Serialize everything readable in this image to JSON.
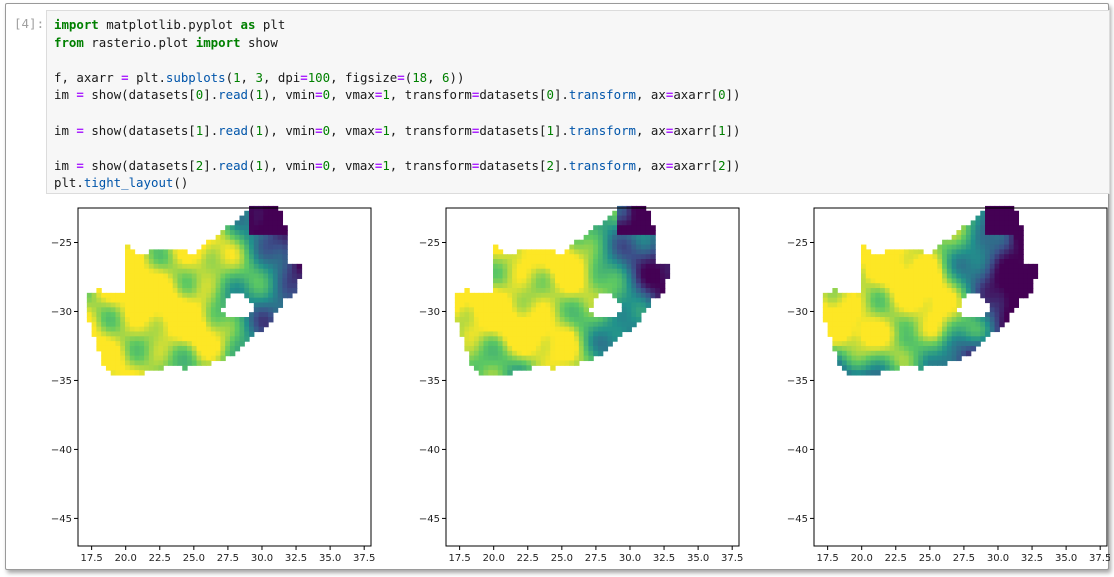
{
  "cell": {
    "prompt": "[4]:",
    "code_lines": [
      [
        {
          "t": "import",
          "c": "kw"
        },
        {
          "t": " matplotlib.pyplot "
        },
        {
          "t": "as",
          "c": "kw"
        },
        {
          "t": " plt"
        }
      ],
      [
        {
          "t": "from",
          "c": "kw"
        },
        {
          "t": " rasterio.plot "
        },
        {
          "t": "import",
          "c": "kw"
        },
        {
          "t": " show"
        }
      ],
      [],
      [
        {
          "t": "f, axarr "
        },
        {
          "t": "=",
          "c": "op"
        },
        {
          "t": " plt."
        },
        {
          "t": "subplots",
          "c": "attr"
        },
        {
          "t": "("
        },
        {
          "t": "1",
          "c": "num"
        },
        {
          "t": ", "
        },
        {
          "t": "3",
          "c": "num"
        },
        {
          "t": ", dpi"
        },
        {
          "t": "=",
          "c": "op"
        },
        {
          "t": "100",
          "c": "num"
        },
        {
          "t": ", figsize"
        },
        {
          "t": "=",
          "c": "op"
        },
        {
          "t": "("
        },
        {
          "t": "18",
          "c": "num"
        },
        {
          "t": ", "
        },
        {
          "t": "6",
          "c": "num"
        },
        {
          "t": "))"
        }
      ],
      [
        {
          "t": "im "
        },
        {
          "t": "=",
          "c": "op"
        },
        {
          "t": " show(datasets["
        },
        {
          "t": "0",
          "c": "num"
        },
        {
          "t": "]."
        },
        {
          "t": "read",
          "c": "attr"
        },
        {
          "t": "("
        },
        {
          "t": "1",
          "c": "num"
        },
        {
          "t": "), vmin"
        },
        {
          "t": "=",
          "c": "op"
        },
        {
          "t": "0",
          "c": "num"
        },
        {
          "t": ", vmax"
        },
        {
          "t": "=",
          "c": "op"
        },
        {
          "t": "1",
          "c": "num"
        },
        {
          "t": ", transform"
        },
        {
          "t": "=",
          "c": "op"
        },
        {
          "t": "datasets["
        },
        {
          "t": "0",
          "c": "num"
        },
        {
          "t": "]."
        },
        {
          "t": "transform",
          "c": "attr"
        },
        {
          "t": ", ax"
        },
        {
          "t": "=",
          "c": "op"
        },
        {
          "t": "axarr["
        },
        {
          "t": "0",
          "c": "num"
        },
        {
          "t": "])"
        }
      ],
      [],
      [
        {
          "t": "im "
        },
        {
          "t": "=",
          "c": "op"
        },
        {
          "t": " show(datasets["
        },
        {
          "t": "1",
          "c": "num"
        },
        {
          "t": "]."
        },
        {
          "t": "read",
          "c": "attr"
        },
        {
          "t": "("
        },
        {
          "t": "1",
          "c": "num"
        },
        {
          "t": "), vmin"
        },
        {
          "t": "=",
          "c": "op"
        },
        {
          "t": "0",
          "c": "num"
        },
        {
          "t": ", vmax"
        },
        {
          "t": "=",
          "c": "op"
        },
        {
          "t": "1",
          "c": "num"
        },
        {
          "t": ", transform"
        },
        {
          "t": "=",
          "c": "op"
        },
        {
          "t": "datasets["
        },
        {
          "t": "1",
          "c": "num"
        },
        {
          "t": "]."
        },
        {
          "t": "transform",
          "c": "attr"
        },
        {
          "t": ", ax"
        },
        {
          "t": "=",
          "c": "op"
        },
        {
          "t": "axarr["
        },
        {
          "t": "1",
          "c": "num"
        },
        {
          "t": "])"
        }
      ],
      [],
      [
        {
          "t": "im "
        },
        {
          "t": "=",
          "c": "op"
        },
        {
          "t": " show(datasets["
        },
        {
          "t": "2",
          "c": "num"
        },
        {
          "t": "]."
        },
        {
          "t": "read",
          "c": "attr"
        },
        {
          "t": "("
        },
        {
          "t": "1",
          "c": "num"
        },
        {
          "t": "), vmin"
        },
        {
          "t": "=",
          "c": "op"
        },
        {
          "t": "0",
          "c": "num"
        },
        {
          "t": ", vmax"
        },
        {
          "t": "=",
          "c": "op"
        },
        {
          "t": "1",
          "c": "num"
        },
        {
          "t": ", transform"
        },
        {
          "t": "=",
          "c": "op"
        },
        {
          "t": "datasets["
        },
        {
          "t": "2",
          "c": "num"
        },
        {
          "t": "]."
        },
        {
          "t": "transform",
          "c": "attr"
        },
        {
          "t": ", ax"
        },
        {
          "t": "=",
          "c": "op"
        },
        {
          "t": "axarr["
        },
        {
          "t": "2",
          "c": "num"
        },
        {
          "t": "])"
        }
      ],
      [
        {
          "t": "plt."
        },
        {
          "t": "tight_layout",
          "c": "attr"
        },
        {
          "t": "()"
        }
      ]
    ]
  },
  "colors": {
    "syntax_keyword": "#008000",
    "syntax_operator": "#aa22ff",
    "syntax_number": "#008000",
    "syntax_attribute": "#0055aa",
    "viridis_low": "#440154",
    "viridis_mid": "#21918c",
    "viridis_high": "#fde725"
  },
  "chart_data": [
    {
      "type": "heatmap",
      "xlim": [
        16.5,
        38.0
      ],
      "ylim": [
        -47.0,
        -22.5
      ],
      "xticks": [
        "17.5",
        "20.0",
        "22.5",
        "25.0",
        "27.5",
        "30.0",
        "32.5",
        "35.0",
        "37.5"
      ],
      "yticks": [
        "-25",
        "-30",
        "-35",
        "-40",
        "-45"
      ],
      "vmin": 0,
      "vmax": 1,
      "colormap": "viridis",
      "dry_fraction": 0.15
    },
    {
      "type": "heatmap",
      "xlim": [
        16.5,
        38.0
      ],
      "ylim": [
        -47.0,
        -22.5
      ],
      "xticks": [
        "17.5",
        "20.0",
        "22.5",
        "25.0",
        "27.5",
        "30.0",
        "32.5",
        "35.0",
        "37.5"
      ],
      "yticks": [
        "-25",
        "-30",
        "-35",
        "-40",
        "-45"
      ],
      "vmin": 0,
      "vmax": 1,
      "colormap": "viridis",
      "dry_fraction": 0.2
    },
    {
      "type": "heatmap",
      "xlim": [
        16.5,
        38.0
      ],
      "ylim": [
        -47.0,
        -22.5
      ],
      "xticks": [
        "17.5",
        "20.0",
        "22.5",
        "25.0",
        "27.5",
        "30.0",
        "32.5",
        "35.0",
        "37.5"
      ],
      "yticks": [
        "-25",
        "-30",
        "-35",
        "-40",
        "-45"
      ],
      "vmin": 0,
      "vmax": 1,
      "colormap": "viridis",
      "dry_fraction": 0.55
    }
  ]
}
